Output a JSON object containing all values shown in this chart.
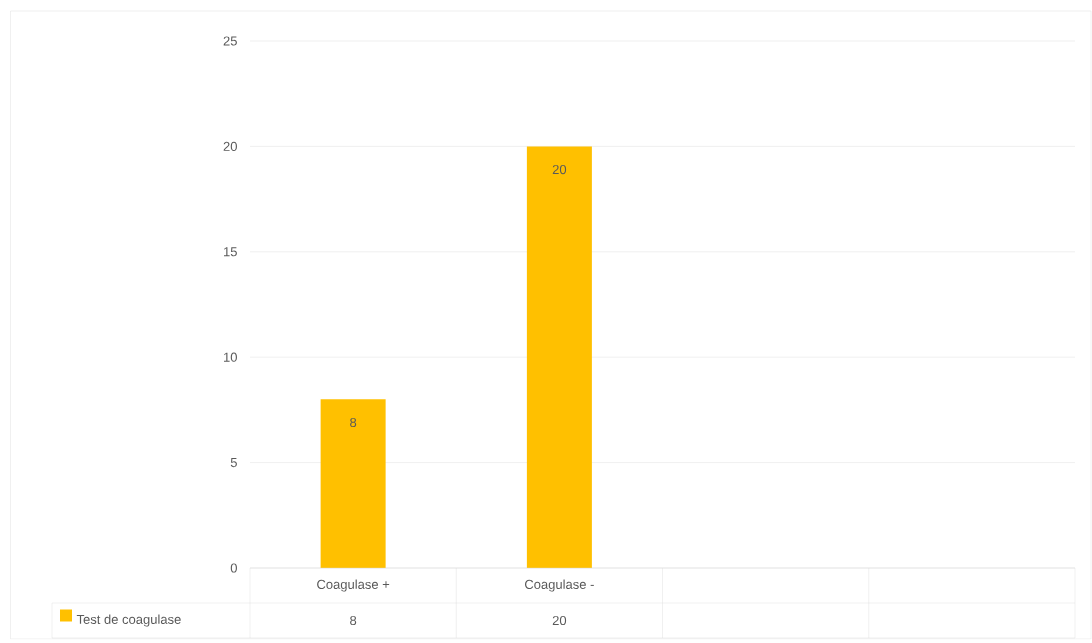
{
  "chart_data": {
    "type": "bar",
    "categories": [
      "Coagulase +",
      "Coagulase -",
      null,
      null
    ],
    "series": [
      {
        "name": "Test de coagulase",
        "color": "#ffc000",
        "values": [
          8,
          20,
          null,
          null
        ],
        "value_labels": [
          "8",
          "20",
          null,
          null
        ]
      }
    ],
    "ylim": [
      0,
      25
    ],
    "yticks": [
      0,
      5,
      10,
      15,
      20,
      25
    ],
    "grid": "y",
    "legend": "bottom",
    "data_labels": true
  }
}
